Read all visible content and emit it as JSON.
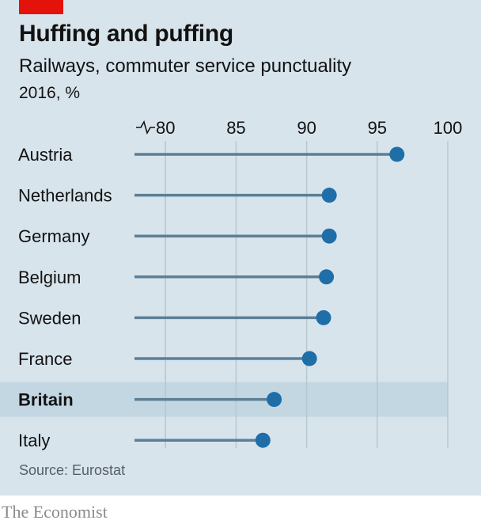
{
  "title": "Huffing and puffing",
  "subtitle": "Railways, commuter service punctuality",
  "unit": "2016, %",
  "source": "Source: Eurostat",
  "footer": "The Economist",
  "colors": {
    "background": "#d8e4ec",
    "accent_red": "#e3120b",
    "dot": "#1f6ea8",
    "stem": "#5b7f96",
    "grid": "#b7c7d1",
    "highlight": "#c3d7e3"
  },
  "chart_data": {
    "type": "dot",
    "orientation": "horizontal",
    "title": "Huffing and puffing",
    "subtitle": "Railways, commuter service punctuality",
    "unit": "2016, %",
    "categories": [
      "Austria",
      "Netherlands",
      "Germany",
      "Belgium",
      "Sweden",
      "France",
      "Britain",
      "Italy"
    ],
    "values": [
      96.4,
      91.6,
      91.6,
      91.4,
      91.2,
      90.2,
      87.7,
      86.9
    ],
    "highlighted": "Britain",
    "xlim": [
      77.8,
      100
    ],
    "axis_break": true,
    "xticks": [
      80,
      85,
      90,
      95,
      100
    ],
    "grid": true,
    "legend": "none"
  }
}
